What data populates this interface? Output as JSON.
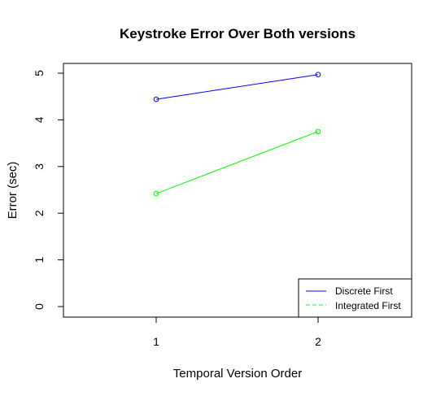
{
  "chart_data": {
    "type": "line",
    "title": "Keystroke Error Over Both versions",
    "xlabel": "Temporal Version Order",
    "ylabel": "Error (sec)",
    "x": [
      1,
      2
    ],
    "xlim": [
      0.5,
      2.5
    ],
    "ylim": [
      0,
      5
    ],
    "xticks": [
      1,
      2
    ],
    "yticks": [
      0,
      1,
      2,
      3,
      4,
      5
    ],
    "grid": false,
    "legend_position": "bottom-right",
    "series": [
      {
        "name": "Discrete First",
        "values": [
          4.44,
          4.97
        ],
        "color": "#0000ff",
        "marker": "circle-open"
      },
      {
        "name": "Integrated First",
        "values": [
          2.42,
          3.75
        ],
        "color": "#00ff00",
        "marker": "circle-open"
      }
    ]
  }
}
